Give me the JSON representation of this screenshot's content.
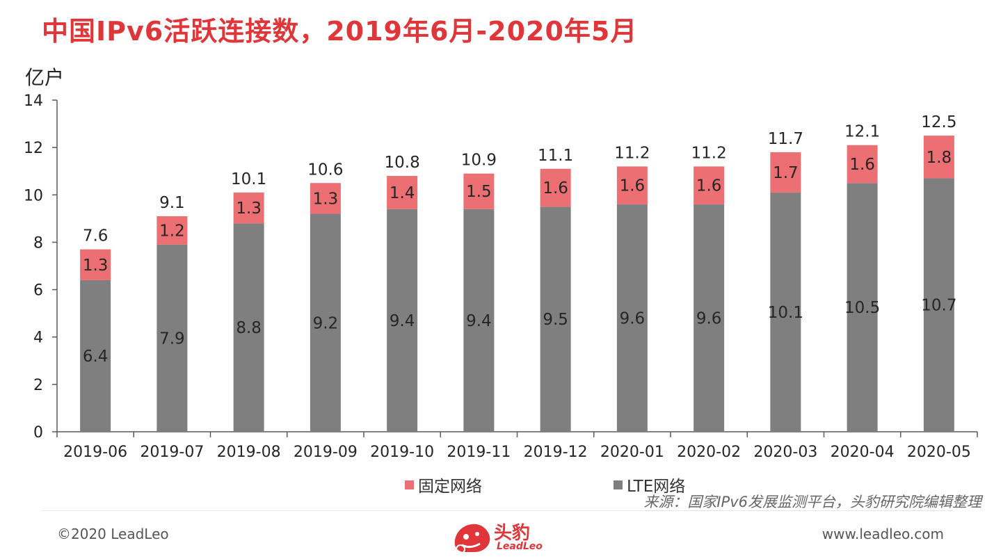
{
  "title": "中国IPv6活跃连接数，2019年6月-2020年5月",
  "unit_label": "亿户",
  "source": "来源：国家IPv6发展监测平台，头豹研究院编辑整理",
  "copyright": "©2020 LeadLeo",
  "website": "www.leadleo.com",
  "logo": {
    "name": "头豹",
    "sub": "LeadLeo"
  },
  "colors": {
    "fixed": "#ec6f73",
    "lte": "#7f7f7f",
    "title": "#e0363a"
  },
  "chart_data": {
    "type": "bar",
    "stacked": true,
    "categories": [
      "2019-06",
      "2019-07",
      "2019-08",
      "2019-09",
      "2019-10",
      "2019-11",
      "2019-12",
      "2020-01",
      "2020-02",
      "2020-03",
      "2020-04",
      "2020-05"
    ],
    "series": [
      {
        "name": "LTE网络",
        "color": "#7f7f7f",
        "values": [
          6.4,
          7.9,
          8.8,
          9.2,
          9.4,
          9.4,
          9.5,
          9.6,
          9.6,
          10.1,
          10.5,
          10.7
        ]
      },
      {
        "name": "固定网络",
        "color": "#ec6f73",
        "values": [
          1.3,
          1.2,
          1.3,
          1.3,
          1.4,
          1.5,
          1.6,
          1.6,
          1.6,
          1.7,
          1.6,
          1.8
        ]
      }
    ],
    "totals": [
      7.6,
      9.1,
      10.1,
      10.6,
      10.8,
      10.9,
      11.1,
      11.2,
      11.2,
      11.7,
      12.1,
      12.5
    ],
    "ylabel": "亿户",
    "ylim": [
      0,
      14
    ],
    "yticks": [
      0,
      2,
      4,
      6,
      8,
      10,
      12,
      14
    ],
    "legend": [
      "固定网络",
      "LTE网络"
    ],
    "legend_position": "bottom"
  }
}
